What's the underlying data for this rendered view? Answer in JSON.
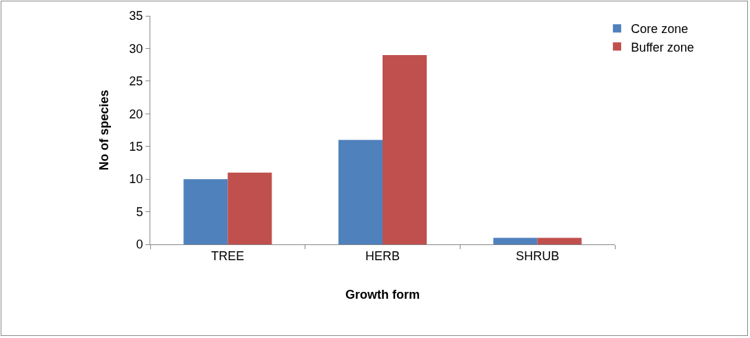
{
  "chart_data": {
    "type": "bar",
    "xlabel": "Growth form",
    "ylabel": "No of species",
    "categories": [
      "TREE",
      "HERB",
      "SHRUB"
    ],
    "series": [
      {
        "name": "Core zone",
        "color": "#4f81bd",
        "values": [
          10,
          16,
          1
        ]
      },
      {
        "name": "Buffer zone",
        "color": "#c0504d",
        "values": [
          11,
          29,
          1
        ]
      }
    ],
    "ylim": [
      0,
      35
    ],
    "yticks": [
      0,
      5,
      10,
      15,
      20,
      25,
      30,
      35
    ],
    "grid": false,
    "legend": "top right"
  }
}
